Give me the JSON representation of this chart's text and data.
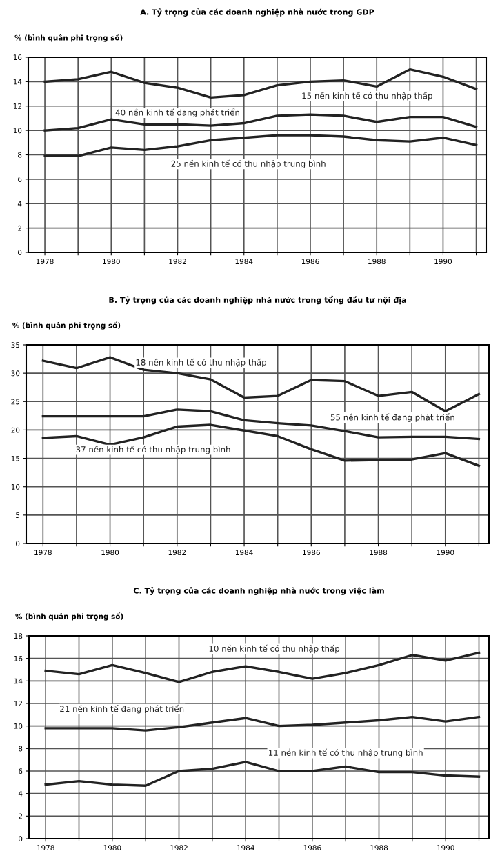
{
  "chart_data": [
    {
      "type": "line",
      "title": "A. Tỷ trọng của các doanh nghiệp nhà nước trong GDP",
      "ylabel": "% (bình quân phi trọng số)",
      "x": [
        1978,
        1979,
        1980,
        1981,
        1982,
        1983,
        1984,
        1985,
        1986,
        1987,
        1988,
        1989,
        1990,
        1991
      ],
      "series": [
        {
          "name": "15 nền kinh tế có thu nhập thấp",
          "color": "#222222",
          "values": [
            14.0,
            14.2,
            14.8,
            13.9,
            13.5,
            12.7,
            12.9,
            13.7,
            14.0,
            14.1,
            13.6,
            15.0,
            14.4,
            13.4
          ]
        },
        {
          "name": "40 nền kinh tế đang phát triển",
          "color": "#222222",
          "values": [
            10.0,
            10.2,
            10.9,
            10.5,
            10.5,
            10.4,
            10.6,
            11.2,
            11.3,
            11.2,
            10.7,
            11.1,
            11.1,
            10.3
          ]
        },
        {
          "name": "25 nền kinh tế có thu nhập trung bình",
          "color": "#222222",
          "values": [
            7.9,
            7.9,
            8.6,
            8.4,
            8.7,
            9.2,
            9.4,
            9.6,
            9.6,
            9.5,
            9.2,
            9.1,
            9.4,
            8.8
          ]
        }
      ],
      "xlim": [
        1977.5,
        1991.3
      ],
      "ylim": [
        0,
        16
      ],
      "xticks": [
        1978,
        {
          "value": 1979,
          "label": null
        },
        1980,
        {
          "value": 1981,
          "label": null
        },
        1982,
        {
          "value": 1983,
          "label": null
        },
        1984,
        {
          "value": 1985,
          "label": null
        },
        1986,
        {
          "value": 1987,
          "label": null
        },
        1988,
        {
          "value": 1989,
          "label": null
        },
        1990,
        {
          "value": 1991,
          "label": null
        }
      ],
      "yticks": [
        0,
        2,
        4,
        6,
        8,
        10,
        12,
        14,
        16
      ],
      "grid": true
    },
    {
      "type": "line",
      "title": "B. Tỷ trọng của các doanh nghiệp nhà nước trong tổng đầu tư nội địa",
      "ylabel": "% (bình quân phi trọng số)",
      "x": [
        1978,
        1979,
        1980,
        1981,
        1982,
        1983,
        1984,
        1985,
        1986,
        1987,
        1988,
        1989,
        1990,
        1991
      ],
      "series": [
        {
          "name": "18 nền kinh tế có thu nhập thấp",
          "color": "#222222",
          "values": [
            32.2,
            30.9,
            32.8,
            30.6,
            30.0,
            28.9,
            25.7,
            26.0,
            28.8,
            28.6,
            26.0,
            26.7,
            23.3,
            26.3
          ]
        },
        {
          "name": "55 nền kinh tế đang phát triển",
          "color": "#222222",
          "values": [
            22.4,
            22.4,
            22.4,
            22.4,
            23.6,
            23.3,
            21.7,
            21.2,
            20.8,
            19.8,
            18.7,
            18.8,
            18.8,
            18.4
          ]
        },
        {
          "name": "37 nền kinh tế có thu nhập trung bình",
          "color": "#222222",
          "values": [
            18.6,
            18.9,
            17.4,
            18.7,
            20.6,
            20.9,
            19.9,
            18.9,
            16.6,
            14.6,
            14.7,
            14.8,
            15.9,
            13.7
          ]
        }
      ],
      "xlim": [
        1977.5,
        1991.3
      ],
      "ylim": [
        0,
        35
      ],
      "xticks": [
        1978,
        {
          "value": 1979,
          "label": null
        },
        1980,
        {
          "value": 1981,
          "label": null
        },
        1982,
        {
          "value": 1983,
          "label": null
        },
        1984,
        {
          "value": 1985,
          "label": null
        },
        1986,
        {
          "value": 1987,
          "label": null
        },
        1988,
        {
          "value": 1989,
          "label": null
        },
        1990,
        {
          "value": 1991,
          "label": null
        }
      ],
      "yticks": [
        0,
        5,
        10,
        15,
        20,
        25,
        30,
        35
      ],
      "grid": true
    },
    {
      "type": "line",
      "title": "C. Tỷ trọng của các doanh nghiệp nhà nước trong việc làm",
      "ylabel": "% (bình quân phi trọng số)",
      "x": [
        1978,
        1979,
        1980,
        1981,
        1982,
        1983,
        1984,
        1985,
        1986,
        1987,
        1988,
        1989,
        1990,
        1991
      ],
      "series": [
        {
          "name": "10 nền kinh tế có thu nhập thấp",
          "color": "#222222",
          "values": [
            14.9,
            14.6,
            15.4,
            14.7,
            13.9,
            14.8,
            15.3,
            14.8,
            14.2,
            14.7,
            15.4,
            16.3,
            15.8,
            16.5
          ]
        },
        {
          "name": "21 nền kinh tế đang phát triển",
          "color": "#222222",
          "values": [
            9.8,
            9.8,
            9.8,
            9.6,
            9.9,
            10.3,
            10.7,
            10.0,
            10.1,
            10.3,
            10.5,
            10.8,
            10.4,
            10.8
          ]
        },
        {
          "name": "11 nền kinh tế có thu nhập trung bình",
          "color": "#222222",
          "values": [
            4.8,
            5.1,
            4.8,
            4.7,
            6.0,
            6.2,
            6.8,
            6.0,
            6.0,
            6.4,
            5.9,
            5.9,
            5.6,
            5.5
          ]
        }
      ],
      "xlim": [
        1977.5,
        1991.3
      ],
      "ylim": [
        0,
        18
      ],
      "xticks": [
        1978,
        {
          "value": 1979,
          "label": null
        },
        1980,
        {
          "value": 1981,
          "label": null
        },
        1982,
        {
          "value": 1983,
          "label": null
        },
        1984,
        {
          "value": 1985,
          "label": null
        },
        1986,
        {
          "value": 1987,
          "label": null
        },
        1988,
        {
          "value": 1989,
          "label": null
        },
        1990,
        {
          "value": 1991,
          "label": null
        }
      ],
      "yticks": [
        0,
        2,
        4,
        6,
        8,
        10,
        12,
        14,
        16,
        18
      ],
      "grid": true
    }
  ]
}
